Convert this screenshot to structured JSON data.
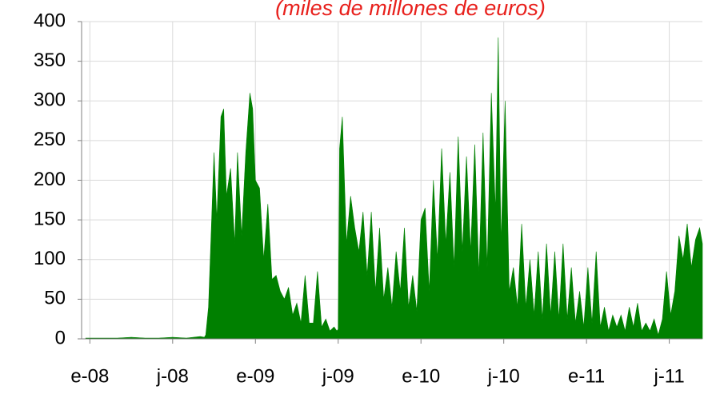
{
  "chart_data": {
    "type": "area",
    "title": "(miles de millones de euros)",
    "color": "#008000",
    "grid": true,
    "xlim": [
      -0.6,
      44.4
    ],
    "xticks": [
      {
        "value": 0,
        "label": "e-08"
      },
      {
        "value": 6,
        "label": "j-08"
      },
      {
        "value": 12,
        "label": "e-09"
      },
      {
        "value": 18,
        "label": "j-09"
      },
      {
        "value": 24,
        "label": "e-10"
      },
      {
        "value": 30,
        "label": "j-10"
      },
      {
        "value": 36,
        "label": "e-11"
      },
      {
        "value": 42,
        "label": "j-11"
      }
    ],
    "ylim": [
      0,
      400
    ],
    "yticks": [
      0,
      50,
      100,
      150,
      200,
      250,
      300,
      350,
      400
    ],
    "x": [
      -0.3,
      1,
      2,
      3,
      4,
      5,
      6,
      7,
      8,
      8.3,
      8.4,
      8.6,
      9.0,
      9.2,
      9.5,
      9.7,
      9.9,
      10.2,
      10.5,
      10.7,
      11.0,
      11.3,
      11.6,
      11.8,
      12.0,
      12.3,
      12.6,
      12.9,
      13.2,
      13.5,
      13.8,
      14.1,
      14.4,
      14.7,
      15.0,
      15.3,
      15.6,
      15.9,
      16.2,
      16.5,
      16.8,
      17.1,
      17.4,
      17.7,
      17.9,
      18.0,
      18.1,
      18.3,
      18.6,
      18.9,
      19.2,
      19.5,
      19.8,
      20.1,
      20.4,
      20.7,
      21.0,
      21.3,
      21.6,
      21.9,
      22.2,
      22.5,
      22.8,
      23.1,
      23.4,
      23.7,
      24.0,
      24.3,
      24.6,
      24.9,
      25.2,
      25.5,
      25.8,
      26.1,
      26.4,
      26.7,
      27.0,
      27.3,
      27.6,
      27.9,
      28.2,
      28.5,
      28.8,
      29.1,
      29.4,
      29.6,
      29.8,
      30.1,
      30.4,
      30.7,
      31.0,
      31.3,
      31.6,
      31.9,
      32.2,
      32.5,
      32.8,
      33.1,
      33.4,
      33.7,
      34.0,
      34.3,
      34.6,
      34.9,
      35.2,
      35.5,
      35.8,
      36.1,
      36.4,
      36.7,
      37.0,
      37.3,
      37.6,
      37.9,
      38.2,
      38.5,
      38.8,
      39.1,
      39.4,
      39.7,
      40.0,
      40.3,
      40.6,
      40.9,
      41.2,
      41.5,
      41.8,
      42.1,
      42.4,
      42.7,
      43.0,
      43.3,
      43.6,
      43.9,
      44.2,
      44.4
    ],
    "values": [
      1,
      1,
      1,
      2,
      1,
      1,
      2,
      1,
      3,
      2,
      5,
      40,
      235,
      150,
      280,
      290,
      180,
      215,
      120,
      235,
      130,
      235,
      310,
      290,
      200,
      190,
      100,
      170,
      75,
      80,
      60,
      50,
      65,
      30,
      45,
      20,
      80,
      20,
      20,
      85,
      15,
      25,
      10,
      15,
      10,
      12,
      240,
      280,
      120,
      180,
      140,
      110,
      160,
      80,
      160,
      60,
      140,
      50,
      90,
      40,
      110,
      60,
      140,
      40,
      80,
      35,
      150,
      165,
      60,
      200,
      100,
      240,
      120,
      210,
      90,
      255,
      110,
      230,
      110,
      245,
      80,
      260,
      90,
      310,
      160,
      380,
      120,
      300,
      60,
      90,
      40,
      145,
      40,
      100,
      30,
      110,
      25,
      120,
      30,
      110,
      25,
      120,
      25,
      90,
      20,
      60,
      15,
      90,
      20,
      110,
      15,
      40,
      10,
      30,
      15,
      30,
      10,
      40,
      15,
      45,
      10,
      20,
      10,
      25,
      5,
      25,
      85,
      30,
      60,
      130,
      100,
      145,
      90,
      125,
      140,
      120
    ]
  }
}
